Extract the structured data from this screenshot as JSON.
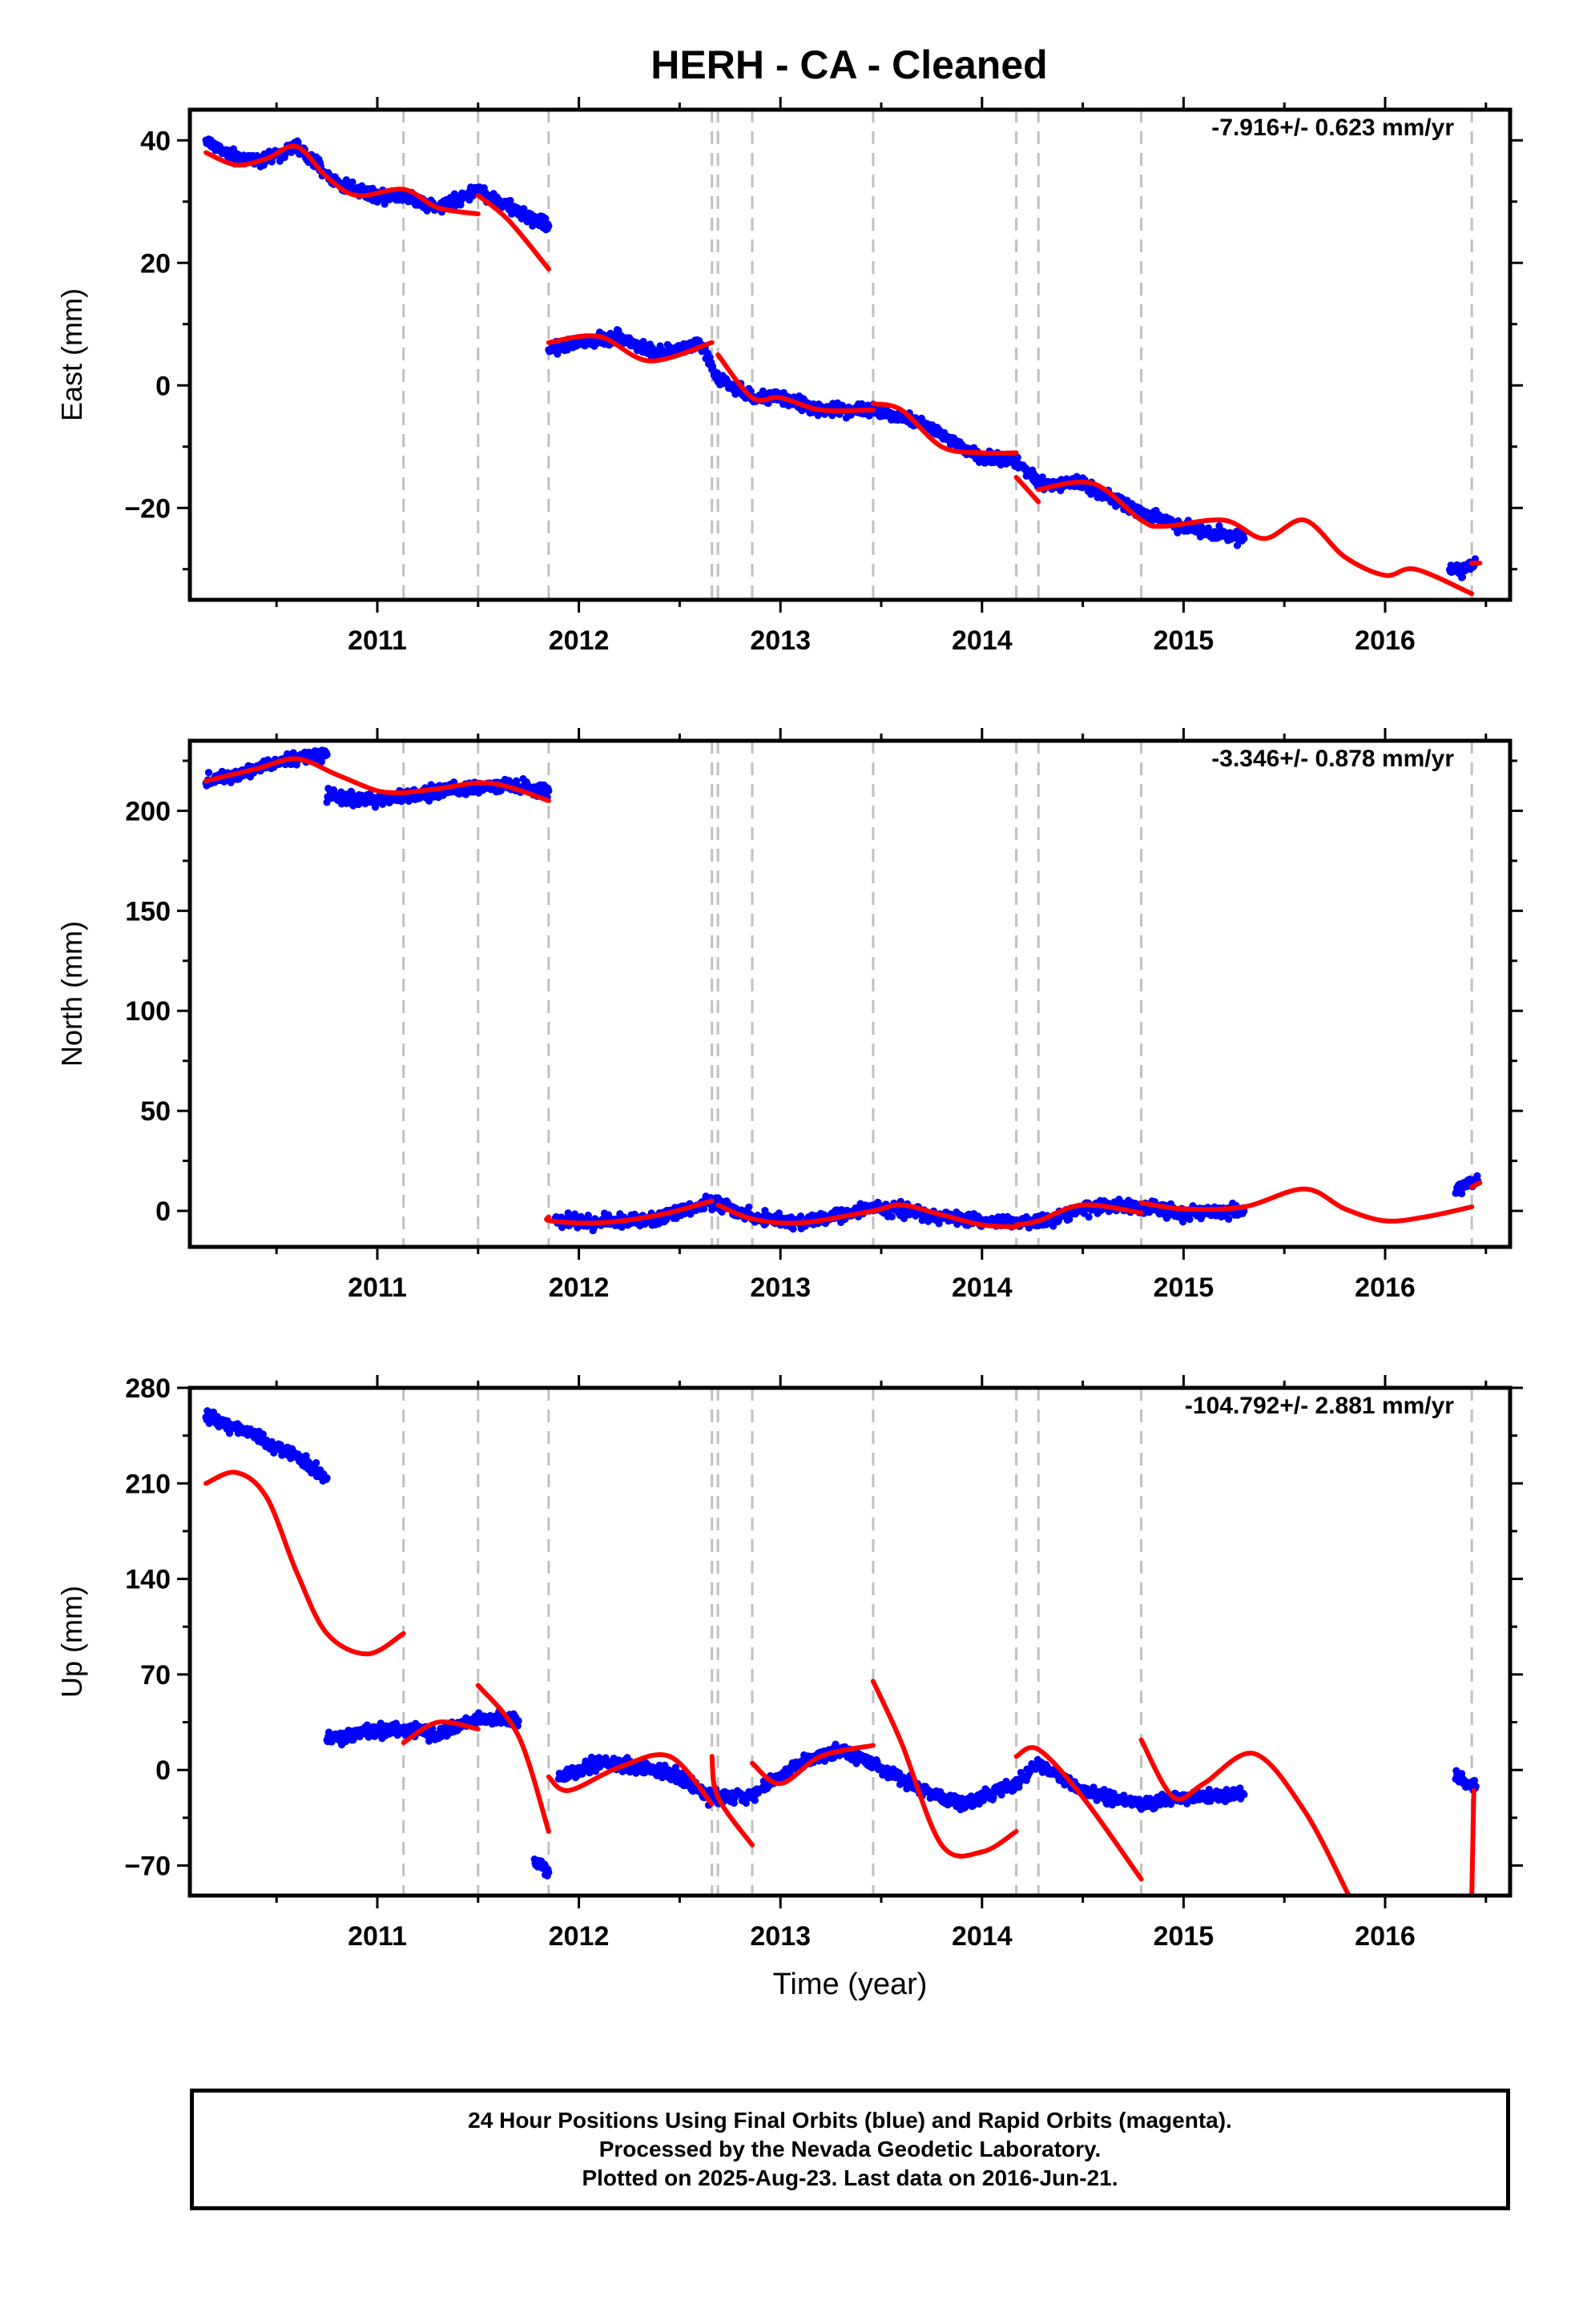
{
  "title": "HERH  - CA - Cleaned",
  "xlabel": "Time (year)",
  "x_ticks": [
    "2011",
    "2012",
    "2013",
    "2014",
    "2015",
    "2016"
  ],
  "colors": {
    "data": "#0000ff",
    "model": "#ff0000",
    "steps": "#c0c0c0",
    "frame": "#000000"
  },
  "footer": {
    "line1": "24 Hour Positions Using Final Orbits (blue) and Rapid Orbits (magenta).",
    "line2": "Processed by the Nevada Geodetic Laboratory.",
    "line3": "Plotted on 2025-Aug-23. Last data on 2016-Jun-21."
  },
  "chart_data": [
    {
      "type": "scatter",
      "name": "east",
      "ylabel": "East (mm)",
      "rate": "-7.916+/- 0.623 mm/yr",
      "xlim": [
        2010.07,
        2016.62
      ],
      "ylim": [
        -35,
        45
      ],
      "y_ticks": [
        40,
        20,
        0,
        -20
      ],
      "y_tick_labels": [
        "40",
        "20",
        "0",
        "−20"
      ],
      "step_dates": [
        2011.13,
        2011.5,
        2011.85,
        2012.66,
        2012.69,
        2012.86,
        2013.46,
        2014.17,
        2014.28,
        2014.79,
        2016.43
      ],
      "data_segments": [
        {
          "x": [
            2010.15,
            2010.3,
            2010.45,
            2010.6,
            2010.8,
            2011.0,
            2011.13,
            2011.3,
            2011.5,
            2011.6,
            2011.85
          ],
          "y": [
            40,
            37,
            37,
            39,
            33,
            31,
            31,
            29,
            32,
            30,
            26
          ]
        },
        {
          "x": [
            2011.85,
            2012.0,
            2012.2,
            2012.4,
            2012.6,
            2012.69,
            2012.86,
            2013.0,
            2013.2,
            2013.46,
            2013.7,
            2014.0,
            2014.17,
            2014.28,
            2014.5,
            2014.8,
            2015.0,
            2015.3
          ],
          "y": [
            6,
            7,
            8,
            5,
            7,
            1,
            -2,
            -2,
            -4,
            -4,
            -6,
            -12,
            -12,
            -16,
            -16,
            -21,
            -23,
            -25
          ]
        },
        {
          "x": [
            2016.32,
            2016.38,
            2016.45
          ],
          "y": [
            -30,
            -30,
            -29
          ]
        }
      ],
      "model_segments": [
        {
          "x": [
            2010.15,
            2010.3,
            2010.45,
            2010.6,
            2010.75,
            2010.9,
            2011.13,
            2011.3,
            2011.5
          ],
          "y": [
            38,
            36,
            37,
            39,
            34,
            31,
            32,
            29,
            28
          ]
        },
        {
          "x": [
            2011.5,
            2011.65,
            2011.85
          ],
          "y": [
            31,
            27,
            19
          ]
        },
        {
          "x": [
            2011.85,
            2012.1,
            2012.35,
            2012.66
          ],
          "y": [
            7,
            8,
            4,
            7
          ]
        },
        {
          "x": [
            2012.69,
            2012.86,
            2013.0,
            2013.2,
            2013.46
          ],
          "y": [
            5,
            -2,
            -2,
            -4,
            -4
          ]
        },
        {
          "x": [
            2013.46,
            2013.6,
            2013.8,
            2014.0,
            2014.17
          ],
          "y": [
            -3,
            -4,
            -10,
            -11,
            -11
          ]
        },
        {
          "x": [
            2014.17,
            2014.28
          ],
          "y": [
            -15,
            -19
          ]
        },
        {
          "x": [
            2014.28,
            2014.55,
            2014.79,
            2014.9,
            2015.2,
            2015.4,
            2015.6,
            2015.8,
            2016.0,
            2016.15,
            2016.43
          ],
          "y": [
            -17,
            -16,
            -22,
            -23,
            -22,
            -25,
            -22,
            -28,
            -31,
            -30,
            -34
          ]
        },
        {
          "x": [
            2016.43,
            2016.47
          ],
          "y": [
            -29,
            -29
          ]
        }
      ]
    },
    {
      "type": "scatter",
      "name": "north",
      "ylabel": "North (mm)",
      "rate": "-3.346+/- 0.878 mm/yr",
      "xlim": [
        2010.07,
        2016.62
      ],
      "ylim": [
        -18,
        235
      ],
      "y_ticks": [
        200,
        150,
        100,
        50,
        0
      ],
      "y_tick_labels": [
        "200",
        "150",
        "100",
        "50",
        "0"
      ],
      "step_dates": [
        2011.13,
        2011.5,
        2011.85,
        2012.66,
        2012.69,
        2012.86,
        2013.46,
        2014.17,
        2014.28,
        2014.79,
        2016.43
      ],
      "data_segments": [
        {
          "x": [
            2010.15,
            2010.35,
            2010.55,
            2010.75
          ],
          "y": [
            215,
            220,
            226,
            228
          ]
        },
        {
          "x": [
            2010.75,
            2011.0,
            2011.3,
            2011.6,
            2011.85
          ],
          "y": [
            207,
            205,
            210,
            213,
            210
          ]
        },
        {
          "x": [
            2011.88,
            2012.1,
            2012.4,
            2012.66,
            2012.86,
            2013.1,
            2013.5,
            2013.8,
            2014.1,
            2014.3,
            2014.6,
            2014.8,
            2015.0,
            2015.3
          ],
          "y": [
            -4,
            -6,
            -4,
            5,
            -3,
            -6,
            2,
            -3,
            -6,
            -5,
            3,
            2,
            -1,
            0
          ]
        },
        {
          "x": [
            2016.35,
            2016.4,
            2016.46
          ],
          "y": [
            10,
            13,
            15
          ]
        }
      ],
      "model_segments": [
        {
          "x": [
            2010.15,
            2010.4,
            2010.6,
            2010.8,
            2011.0,
            2011.13
          ],
          "y": [
            215,
            221,
            226,
            218,
            210,
            209
          ]
        },
        {
          "x": [
            2011.13,
            2011.3,
            2011.5,
            2011.65,
            2011.85
          ],
          "y": [
            209,
            211,
            214,
            212,
            205
          ]
        },
        {
          "x": [
            2011.85,
            2011.86,
            2012.1,
            2012.4,
            2012.66
          ],
          "y": [
            -3,
            -5,
            -6,
            -2,
            5
          ]
        },
        {
          "x": [
            2012.69,
            2012.86,
            2013.1,
            2013.46,
            2013.6,
            2013.8,
            2014.0,
            2014.17
          ],
          "y": [
            3,
            -4,
            -6,
            0,
            3,
            -2,
            -7,
            -8
          ]
        },
        {
          "x": [
            2014.17,
            2014.28,
            2014.5,
            2014.79
          ],
          "y": [
            -7,
            -5,
            3,
            -1
          ]
        },
        {
          "x": [
            2014.79,
            2015.0,
            2015.3,
            2015.6,
            2015.8,
            2016.0,
            2016.2,
            2016.43
          ],
          "y": [
            4,
            1,
            2,
            11,
            1,
            -5,
            -3,
            2
          ]
        },
        {
          "x": [
            2016.43,
            2016.47
          ],
          "y": [
            12,
            14
          ]
        }
      ]
    },
    {
      "type": "scatter",
      "name": "up",
      "ylabel": "Up (mm)",
      "rate": "-104.792+/- 2.881 mm/yr",
      "xlim": [
        2010.07,
        2016.62
      ],
      "ylim": [
        -92,
        280
      ],
      "y_ticks": [
        280,
        210,
        140,
        70,
        0,
        -70
      ],
      "y_tick_labels": [
        "280",
        "210",
        "140",
        "70",
        "0",
        "−70"
      ],
      "step_dates": [
        2011.13,
        2011.5,
        2011.85,
        2012.66,
        2012.69,
        2012.86,
        2013.46,
        2014.17,
        2014.28,
        2014.79,
        2016.43
      ],
      "data_segments": [
        {
          "x": [
            2010.15,
            2010.3,
            2010.45,
            2010.6,
            2010.75
          ],
          "y": [
            258,
            252,
            240,
            230,
            214
          ]
        },
        {
          "x": [
            2010.75,
            2010.95,
            2011.13,
            2011.3,
            2011.5,
            2011.7
          ],
          "y": [
            22,
            28,
            30,
            26,
            38,
            36
          ]
        },
        {
          "x": [
            2011.78,
            2011.82,
            2011.85
          ],
          "y": [
            -65,
            -72,
            -75
          ]
        },
        {
          "x": [
            2011.9,
            2012.1,
            2012.3,
            2012.5,
            2012.66,
            2012.86,
            2013.1,
            2013.3,
            2013.46,
            2013.7,
            2013.9,
            2014.17,
            2014.28,
            2014.5,
            2014.79,
            2015.0,
            2015.3
          ],
          "y": [
            -5,
            5,
            2,
            -5,
            -20,
            -18,
            5,
            15,
            5,
            -15,
            -25,
            -10,
            5,
            -15,
            -25,
            -20,
            -18
          ]
        },
        {
          "x": [
            2016.35,
            2016.4,
            2016.45
          ],
          "y": [
            -5,
            -10,
            -12
          ]
        }
      ],
      "model_segments": [
        {
          "x": [
            2010.15,
            2010.3,
            2010.45,
            2010.6,
            2010.75,
            2010.95,
            2011.13
          ],
          "y": [
            210,
            218,
            200,
            145,
            100,
            85,
            100
          ]
        },
        {
          "x": [
            2011.13,
            2011.3,
            2011.5
          ],
          "y": [
            20,
            35,
            30
          ]
        },
        {
          "x": [
            2011.5,
            2011.7,
            2011.85
          ],
          "y": [
            62,
            25,
            -45
          ]
        },
        {
          "x": [
            2011.85,
            2011.95,
            2012.2,
            2012.45,
            2012.66
          ],
          "y": [
            -5,
            -15,
            2,
            10,
            -25
          ]
        },
        {
          "x": [
            2012.66,
            2012.69,
            2012.86
          ],
          "y": [
            10,
            -20,
            -55
          ]
        },
        {
          "x": [
            2012.86,
            2013.0,
            2013.2,
            2013.46
          ],
          "y": [
            5,
            -10,
            10,
            18
          ]
        },
        {
          "x": [
            2013.46,
            2013.6,
            2013.8,
            2014.0,
            2014.17
          ],
          "y": [
            65,
            20,
            -55,
            -60,
            -45
          ]
        },
        {
          "x": [
            2014.17,
            2014.28,
            2014.5,
            2014.79
          ],
          "y": [
            10,
            15,
            -20,
            -80
          ]
        },
        {
          "x": [
            2014.79,
            2014.95,
            2015.1,
            2015.35,
            2015.6,
            2015.82
          ],
          "y": [
            22,
            -20,
            -10,
            12,
            -30,
            -92
          ]
        },
        {
          "x": [
            2016.43,
            2016.44
          ],
          "y": [
            -92,
            -15
          ]
        }
      ]
    }
  ]
}
